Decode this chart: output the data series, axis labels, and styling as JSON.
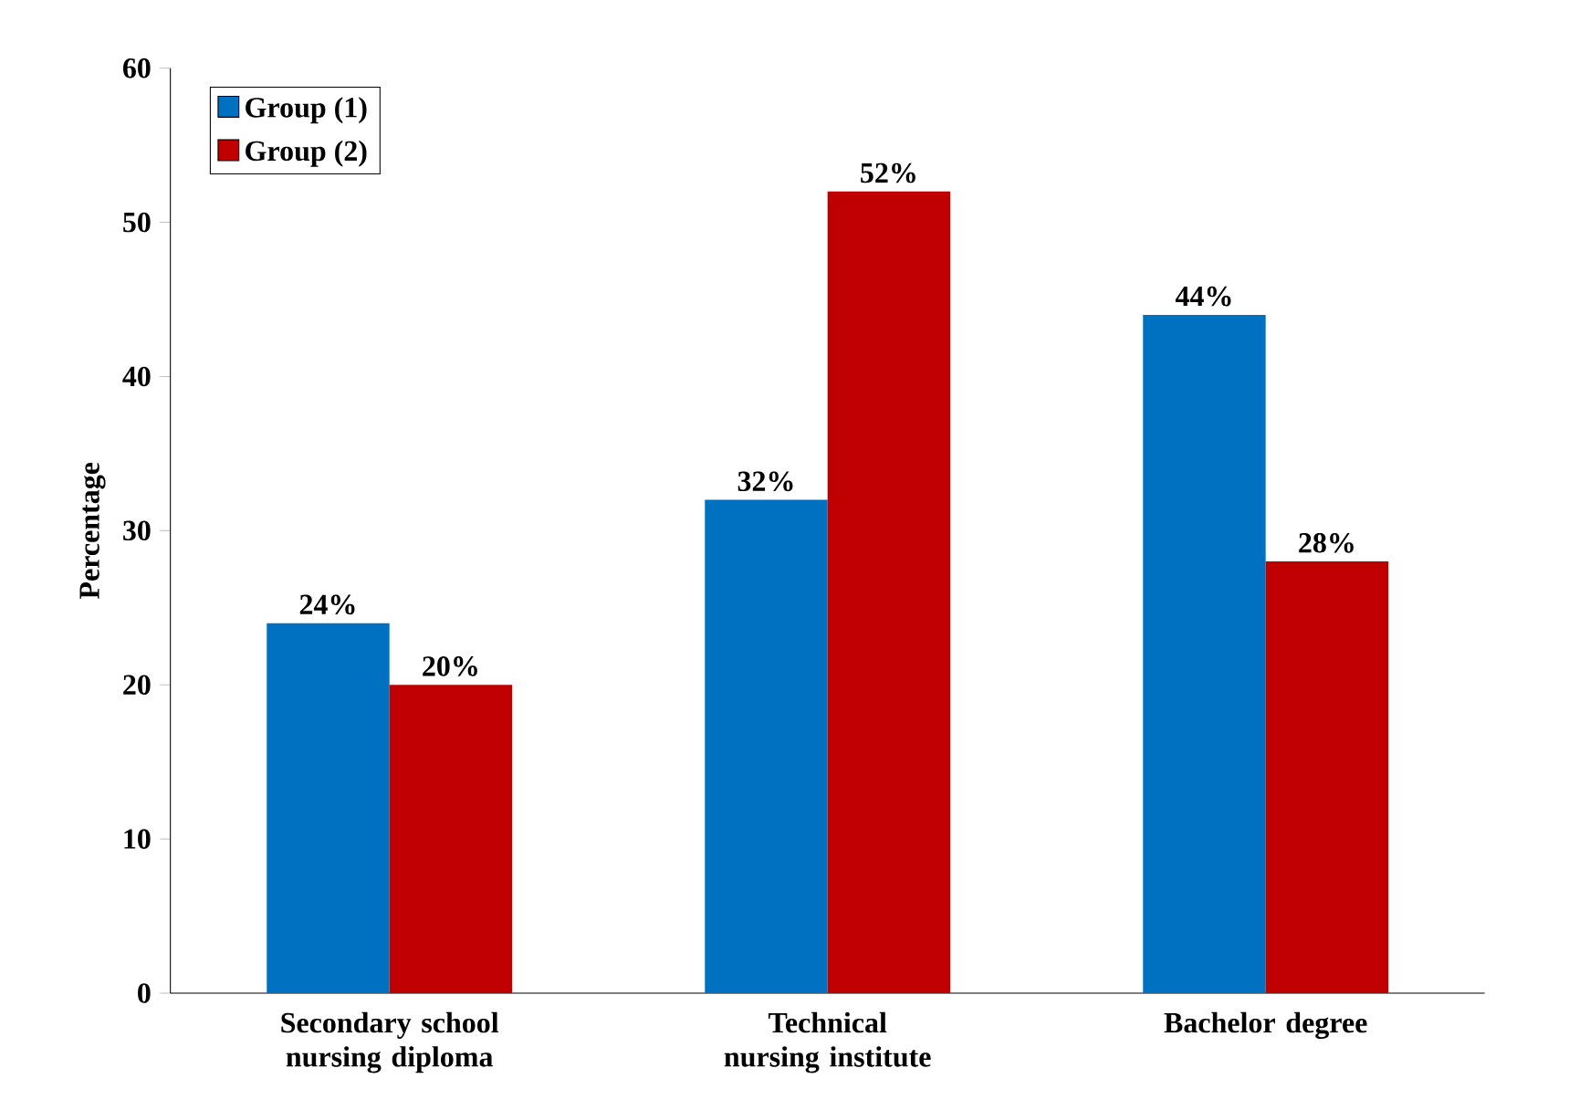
{
  "chart_data": {
    "type": "bar",
    "ylabel": "Percentage",
    "categories": [
      "Secondary school nursing diploma",
      "Technical nursing institute",
      "Bachelor degree"
    ],
    "series": [
      {
        "name": "Group (1)",
        "color": "#0070c0",
        "values": [
          24,
          32,
          44
        ],
        "value_labels": [
          "24%",
          "32%",
          "44%"
        ]
      },
      {
        "name": "Group (2)",
        "color": "#c00000",
        "values": [
          20,
          52,
          28
        ],
        "value_labels": [
          "20%",
          "52%",
          "28%"
        ]
      }
    ],
    "ylim": [
      0,
      60
    ],
    "yticks": [
      0,
      10,
      20,
      30,
      40,
      50,
      60
    ],
    "legend": "top left",
    "grid": false
  }
}
